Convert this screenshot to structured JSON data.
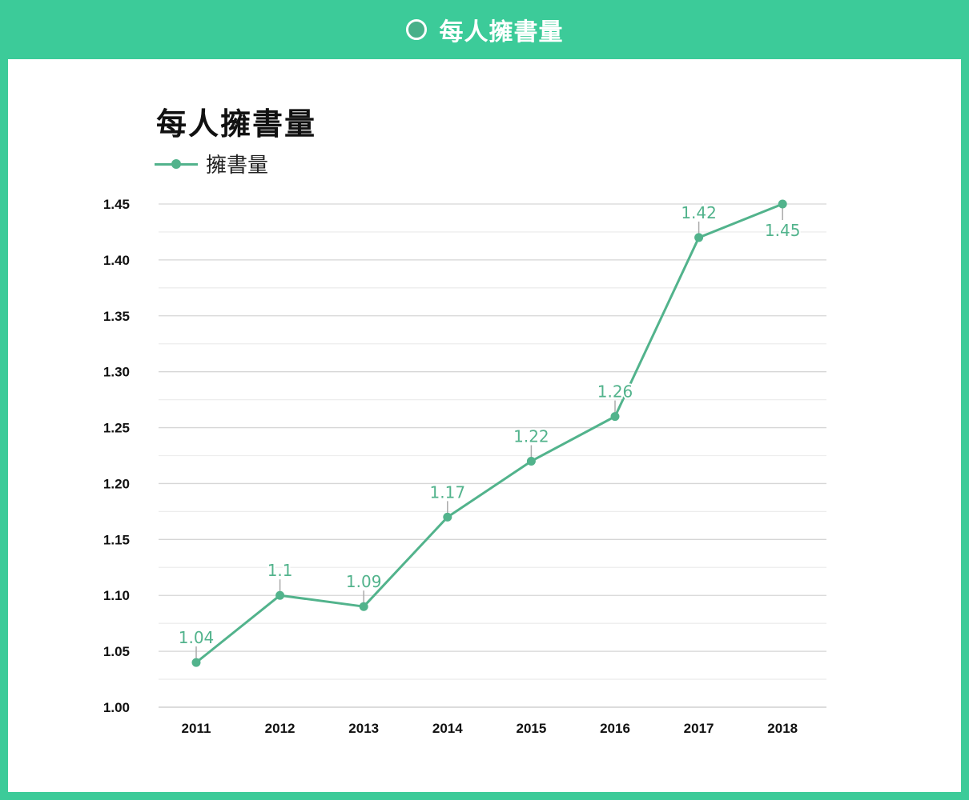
{
  "header": {
    "title": "每人擁書量",
    "icon": "circle-icon"
  },
  "colors": {
    "accent": "#3ccb99",
    "series": "#52b38c"
  },
  "chart_data": {
    "type": "line",
    "title": "每人擁書量",
    "legend_position": "top-left",
    "grid": true,
    "categories": [
      "2011",
      "2012",
      "2013",
      "2014",
      "2015",
      "2016",
      "2017",
      "2018"
    ],
    "series": [
      {
        "name": "擁書量",
        "values": [
          1.04,
          1.1,
          1.09,
          1.17,
          1.22,
          1.26,
          1.42,
          1.45
        ]
      }
    ],
    "data_labels": [
      "1.04",
      "1.1",
      "1.09",
      "1.17",
      "1.22",
      "1.26",
      "1.42",
      "1.45"
    ],
    "yticks": [
      "1.00",
      "1.05",
      "1.10",
      "1.15",
      "1.20",
      "1.25",
      "1.30",
      "1.35",
      "1.40",
      "1.45"
    ],
    "ylim": [
      1.0,
      1.45
    ]
  }
}
